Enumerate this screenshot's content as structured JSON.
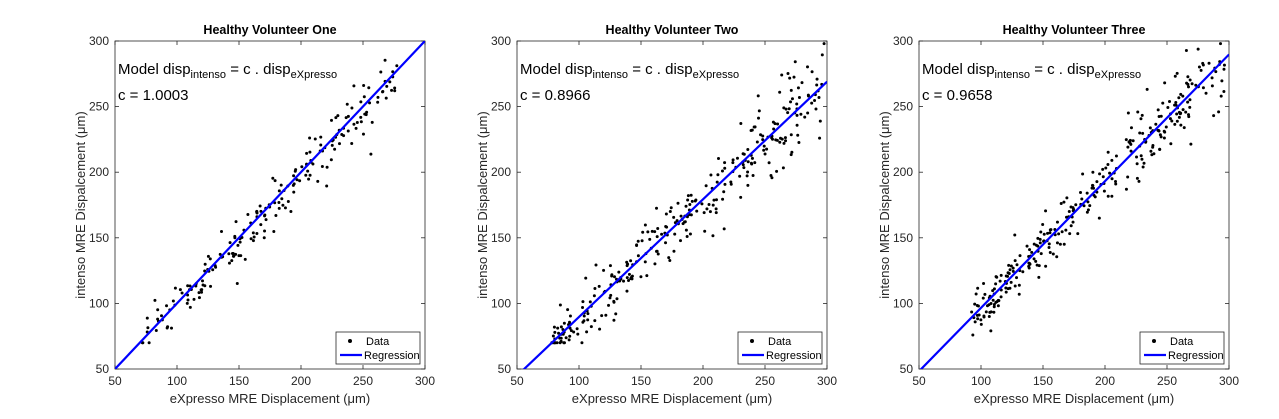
{
  "chart_data": [
    {
      "type": "scatter",
      "title": "Healthy Volunteer One",
      "xlabel": "eXpresso MRE Displacement (μm)",
      "ylabel": "intenso MRE Dispalcement (μm)",
      "xlim": [
        50,
        300
      ],
      "ylim": [
        50,
        300
      ],
      "xticks": [
        50,
        100,
        150,
        200,
        250,
        300
      ],
      "yticks": [
        50,
        100,
        150,
        200,
        250,
        300
      ],
      "model_label": {
        "prefix": "Model disp",
        "sub1": "intenso",
        "mid": " = c . disp",
        "sub2": "eXpresso"
      },
      "c_label": "c = 1.0003",
      "legend": [
        "Data",
        "Regression"
      ],
      "regression": {
        "slope": 1.0003,
        "x": [
          50,
          300
        ]
      },
      "series": [
        {
          "name": "Data",
          "color": "#000000",
          "gen": {
            "n": 200,
            "xmin": 72,
            "xmax": 278,
            "slope": 1.0003,
            "noise": 9,
            "downskew": 14,
            "seed": 11
          }
        },
        {
          "name": "Regression",
          "color": "#0000ff"
        }
      ]
    },
    {
      "type": "scatter",
      "title": "Healthy Volunteer Two",
      "xlabel": "eXpresso MRE Displacement (μm)",
      "ylabel": "intenso MRE Dispalcement (μm)",
      "xlim": [
        50,
        300
      ],
      "ylim": [
        50,
        300
      ],
      "xticks": [
        50,
        100,
        150,
        200,
        250,
        300
      ],
      "yticks": [
        50,
        100,
        150,
        200,
        250,
        300
      ],
      "model_label": {
        "prefix": "Model disp",
        "sub1": "intenso",
        "mid": " = c . disp",
        "sub2": "eXpresso"
      },
      "c_label": "c = 0.8966",
      "legend": [
        "Data",
        "Regression"
      ],
      "regression": {
        "slope": 0.8966,
        "x": [
          50,
          300
        ]
      },
      "series": [
        {
          "name": "Data",
          "color": "#000000",
          "gen": {
            "n": 300,
            "xmin": 78,
            "xmax": 298,
            "slope": 0.8966,
            "noise": 13,
            "downskew": 5,
            "seed": 23
          }
        },
        {
          "name": "Regression",
          "color": "#0000ff"
        }
      ]
    },
    {
      "type": "scatter",
      "title": "Healthy Volunteer Three",
      "xlabel": "eXpresso MRE Displacement (μm)",
      "ylabel": "intenso MRE Dispalcement (μm)",
      "xlim": [
        50,
        300
      ],
      "ylim": [
        50,
        300
      ],
      "xticks": [
        50,
        100,
        150,
        200,
        250,
        300
      ],
      "yticks": [
        50,
        100,
        150,
        200,
        250,
        300
      ],
      "model_label": {
        "prefix": "Model disp",
        "sub1": "intenso",
        "mid": " = c . disp",
        "sub2": "eXpresso"
      },
      "c_label": "c = 0.9658",
      "legend": [
        "Data",
        "Regression"
      ],
      "regression": {
        "slope": 0.9658,
        "x": [
          50,
          300
        ]
      },
      "series": [
        {
          "name": "Data",
          "color": "#000000",
          "gen": {
            "n": 300,
            "xmin": 92,
            "xmax": 298,
            "slope": 0.9658,
            "noise": 12,
            "downskew": 8,
            "seed": 37
          }
        },
        {
          "name": "Regression",
          "color": "#0000ff"
        }
      ]
    }
  ]
}
